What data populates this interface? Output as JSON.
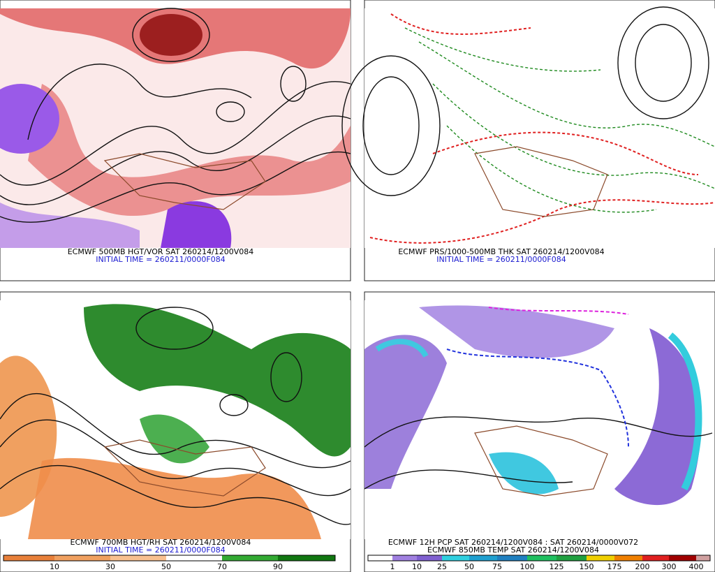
{
  "panels": [
    {
      "caption": "ECMWF 500MB HGT/VOR SAT 260214/1200V084",
      "initial_time": "INITIAL TIME = 260211/0000F084"
    },
    {
      "caption": "ECMWF PRS/1000-500MB THK SAT 260214/1200V084",
      "initial_time": "INITIAL TIME = 260211/0000F084"
    },
    {
      "caption": "ECMWF 700MB HGT/RH SAT 260214/1200V084",
      "initial_time": "INITIAL TIME = 260211/0000F084",
      "colorbar_labels": [
        "10",
        "30",
        "50",
        "70",
        "90"
      ]
    },
    {
      "caption": "ECMWF 12H PCP SAT 260214/1200V084 : SAT 260214/0000V072",
      "initial_time": "ECMWF 850MB TEMP SAT 260214/1200V084",
      "colorbar_labels": [
        "1",
        "10",
        "25",
        "50",
        "75",
        "100",
        "125",
        "150",
        "175",
        "200",
        "300",
        "400"
      ]
    }
  ]
}
